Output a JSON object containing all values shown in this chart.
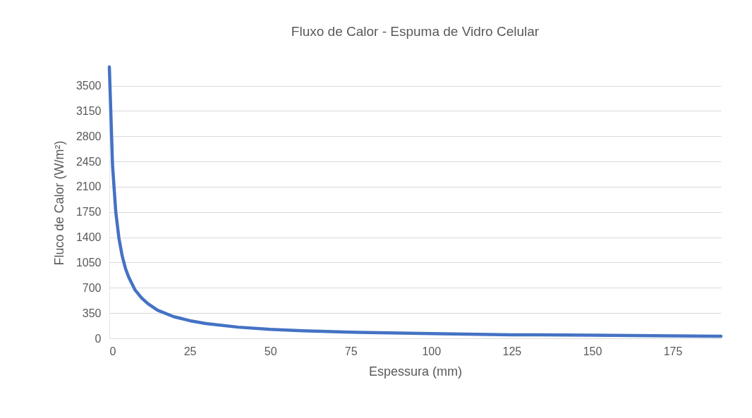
{
  "chart_data": {
    "type": "line",
    "title": "Fluxo de Calor - Espuma de Vidro Celular",
    "xlabel": "Espessura (mm)",
    "ylabel": "Fluco de Calor (W/m²)",
    "x": [
      0,
      1,
      2,
      3,
      4,
      5,
      6,
      8,
      10,
      12,
      15,
      20,
      25,
      30,
      40,
      50,
      60,
      75,
      100,
      125,
      150,
      175,
      190
    ],
    "series": [
      {
        "color": "#4472c4",
        "values": [
          3760,
          2390,
          1750,
          1380,
          1140,
          970,
          850,
          670,
          560,
          480,
          390,
          300,
          245,
          205,
          155,
          125,
          105,
          85,
          65,
          50,
          45,
          35,
          30
        ]
      }
    ],
    "xlim": [
      0,
      190
    ],
    "xticks": [
      0,
      25,
      50,
      75,
      100,
      125,
      150,
      175
    ],
    "ylim": [
      0,
      3760
    ],
    "yticks": [
      0,
      350,
      700,
      1050,
      1400,
      1750,
      2100,
      2450,
      2800,
      3150,
      3500
    ],
    "grid": "y",
    "legend": false,
    "marker": "none",
    "line_style": "solid"
  }
}
